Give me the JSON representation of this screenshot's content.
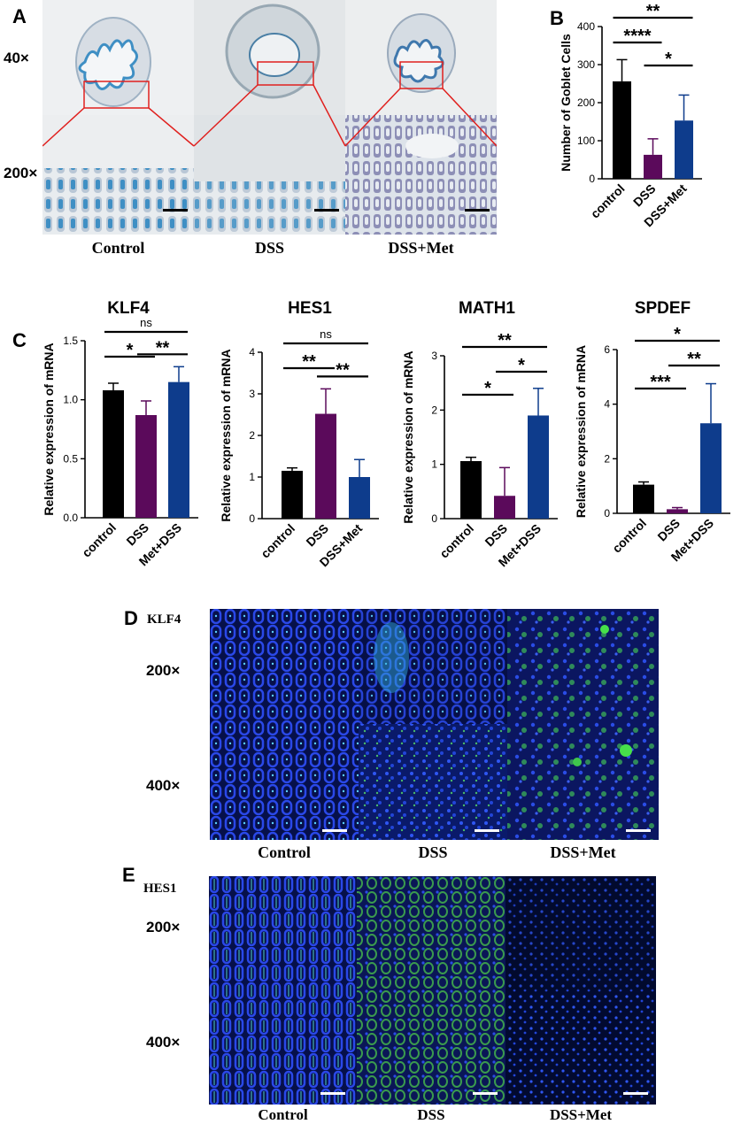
{
  "panels": {
    "A": {
      "letter": "A",
      "mag_top": "40×",
      "mag_bottom": "200×",
      "groups": [
        "Control",
        "DSS",
        "DSS+Met"
      ]
    },
    "B": {
      "letter": "B"
    },
    "C": {
      "letter": "C"
    },
    "D": {
      "letter": "D",
      "marker": "KLF4",
      "mag_top": "200×",
      "mag_bottom": "400×",
      "groups": [
        "Control",
        "DSS",
        "DSS+Met"
      ]
    },
    "E": {
      "letter": "E",
      "marker": "HES1",
      "mag_top": "200×",
      "mag_bottom": "400×",
      "groups": [
        "Control",
        "DSS",
        "DSS+Met"
      ]
    }
  },
  "colors": {
    "control": "#000000",
    "dss": "#5b0a5b",
    "met": "#0e3c8c",
    "fluor_blue": "#1a2fd6",
    "fluor_green": "#39c84a",
    "histology_bg": "#e9ecef",
    "histology_stain": "#3f8fc4"
  },
  "chart_data": [
    {
      "id": "B",
      "type": "bar",
      "title": "",
      "categories": [
        "control",
        "DSS",
        "DSS+Met"
      ],
      "values": [
        256,
        63,
        153
      ],
      "errors": [
        57,
        42,
        67
      ],
      "ylabel": "Number of Goblet Cells",
      "ylim": [
        0,
        400
      ],
      "yticks": [
        0,
        100,
        200,
        300,
        400
      ],
      "significance": [
        {
          "from": 0,
          "to": 2,
          "label": "**"
        },
        {
          "from": 0,
          "to": 1,
          "label": "****"
        },
        {
          "from": 1,
          "to": 2,
          "label": "*"
        }
      ]
    },
    {
      "id": "KLF4",
      "type": "bar",
      "title": "KLF4",
      "categories": [
        "control",
        "DSS",
        "Met+DSS"
      ],
      "values": [
        1.08,
        0.87,
        1.15
      ],
      "errors": [
        0.06,
        0.12,
        0.13
      ],
      "ylabel": "Relative expression of mRNA",
      "ylim": [
        0,
        1.5
      ],
      "yticks": [
        0.0,
        0.5,
        1.0,
        1.5
      ],
      "significance": [
        {
          "from": 0,
          "to": 2,
          "label": "ns"
        },
        {
          "from": 0,
          "to": 1,
          "label": "*"
        },
        {
          "from": 1,
          "to": 2,
          "label": "**"
        }
      ]
    },
    {
      "id": "HES1",
      "type": "bar",
      "title": "HES1",
      "categories": [
        "control",
        "DSS",
        "DSS+Met"
      ],
      "values": [
        1.15,
        2.52,
        1.0
      ],
      "errors": [
        0.07,
        0.6,
        0.42
      ],
      "ylabel": "Relative expression of mRNA",
      "ylim": [
        0,
        4
      ],
      "yticks": [
        0,
        1,
        2,
        3,
        4
      ],
      "significance": [
        {
          "from": 0,
          "to": 2,
          "label": "ns"
        },
        {
          "from": 0,
          "to": 1,
          "label": "**"
        },
        {
          "from": 1,
          "to": 2,
          "label": "**"
        }
      ]
    },
    {
      "id": "MATH1",
      "type": "bar",
      "title": "MATH1",
      "categories": [
        "control",
        "DSS",
        "Met+DSS"
      ],
      "values": [
        1.06,
        0.42,
        1.9
      ],
      "errors": [
        0.07,
        0.52,
        0.5
      ],
      "ylabel": "Relative expression of mRNA",
      "ylim": [
        0,
        3
      ],
      "yticks": [
        0,
        1,
        2,
        3
      ],
      "significance": [
        {
          "from": 0,
          "to": 2,
          "label": "**"
        },
        {
          "from": 1,
          "to": 2,
          "label": "*"
        },
        {
          "from": 0,
          "to": 1,
          "label": "*"
        }
      ]
    },
    {
      "id": "SPDEF",
      "type": "bar",
      "title": "SPDEF",
      "categories": [
        "control",
        "DSS",
        "Met+DSS"
      ],
      "values": [
        1.05,
        0.15,
        3.3
      ],
      "errors": [
        0.1,
        0.06,
        1.45
      ],
      "ylabel": "Relative expression of mRNA",
      "ylim": [
        0,
        6
      ],
      "yticks": [
        0,
        2,
        4,
        6
      ],
      "significance": [
        {
          "from": 0,
          "to": 2,
          "label": "*"
        },
        {
          "from": 1,
          "to": 2,
          "label": "**"
        },
        {
          "from": 0,
          "to": 1,
          "label": "***"
        }
      ]
    }
  ]
}
